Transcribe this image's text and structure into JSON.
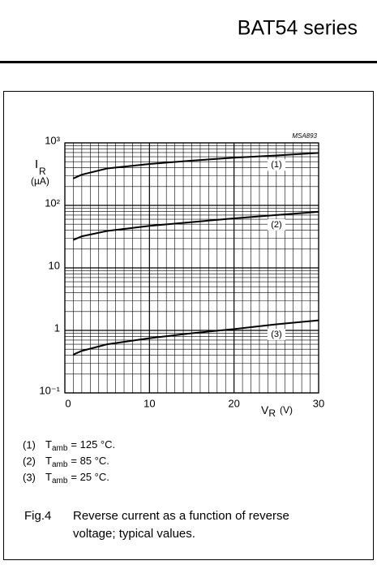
{
  "header": {
    "title": "BAT54 series"
  },
  "chart_data": {
    "type": "line",
    "code": "MSA893",
    "ylabel": {
      "symbol": "I",
      "subscript": "R",
      "unit": "(µA)"
    },
    "xlabel": {
      "symbol": "V",
      "subscript": "R",
      "unit": "(V)"
    },
    "log_y": true,
    "grid": true,
    "xlim": [
      0,
      30
    ],
    "xticks": [
      0,
      10,
      20,
      30
    ],
    "xminorticks": [
      1,
      2,
      3,
      4,
      5,
      6,
      7,
      8,
      9,
      11,
      12,
      13,
      14,
      15,
      16,
      17,
      18,
      19,
      21,
      22,
      23,
      24,
      25,
      26,
      27,
      28,
      29
    ],
    "ylim": [
      0.1,
      1000
    ],
    "yticks": [
      {
        "value": 0.1,
        "label": "10⁻¹"
      },
      1,
      10,
      {
        "value": 100,
        "label": "10²"
      },
      {
        "value": 1000,
        "label": "10³"
      }
    ],
    "yminorticks": [
      0.2,
      0.3,
      0.4,
      0.5,
      0.6,
      0.7,
      0.8,
      0.9,
      2,
      3,
      4,
      5,
      6,
      7,
      8,
      9,
      20,
      30,
      40,
      50,
      60,
      70,
      80,
      90,
      200,
      300,
      400,
      500,
      600,
      700,
      800,
      900
    ],
    "x": [
      1,
      2,
      5,
      10,
      15,
      20,
      25,
      30
    ],
    "series": [
      {
        "name": "(1)",
        "color": "#000000",
        "values": [
          270,
          310,
          390,
          460,
          520,
          580,
          630,
          690
        ]
      },
      {
        "name": "(2)",
        "color": "#000000",
        "values": [
          28,
          32,
          39,
          47,
          54,
          62,
          70,
          79
        ]
      },
      {
        "name": "(3)",
        "color": "#000000",
        "values": [
          0.41,
          0.47,
          0.6,
          0.75,
          0.9,
          1.05,
          1.25,
          1.45
        ]
      }
    ]
  },
  "legend_notes": [
    {
      "symbol": "T",
      "subscript": "amb",
      "text": "= 125 °C."
    },
    {
      "symbol": "T",
      "subscript": "amb",
      "text": "= 85 °C."
    },
    {
      "symbol": "T",
      "subscript": "amb",
      "text": "= 25 °C."
    }
  ],
  "figure": {
    "label": "Fig.4",
    "caption": [
      "Reverse current as a function of reverse",
      "voltage; typical values."
    ]
  }
}
